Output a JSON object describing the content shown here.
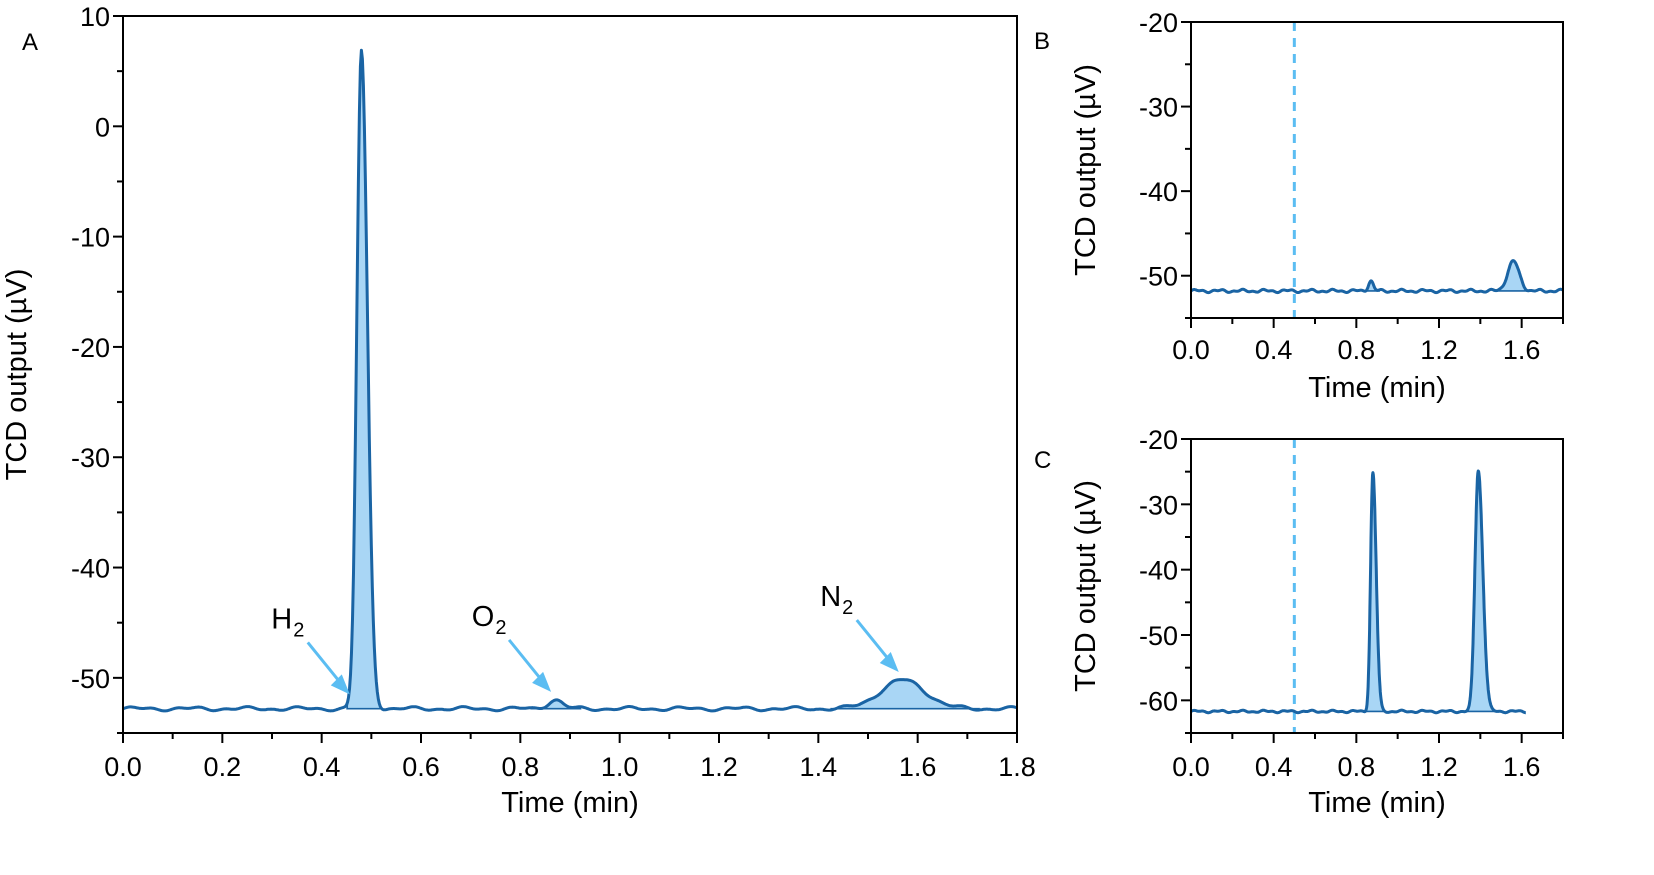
{
  "colors": {
    "line": "#1a64a4",
    "fill": "#a9d6f5",
    "arrow": "#5bbdf2",
    "marker": "#5bbdf2"
  },
  "chart_data": [
    {
      "panel": "A",
      "type": "line",
      "title": "",
      "xlabel": "Time (min)",
      "ylabel": "TCD output (µV)",
      "xlim": [
        0.0,
        1.8
      ],
      "ylim": [
        -55,
        10
      ],
      "xticks": [
        "0.0",
        "0.2",
        "0.4",
        "0.6",
        "0.8",
        "1.0",
        "1.2",
        "1.4",
        "1.6",
        "1.8"
      ],
      "yticks": [
        "10",
        "0",
        "-10",
        "-20",
        "-30",
        "-40",
        "-50"
      ],
      "grid": false,
      "baseline": -52.8,
      "peaks": [
        {
          "gas": "H",
          "sub": "2",
          "x": 0.48,
          "y": 6.8
        },
        {
          "gas": "O",
          "sub": "2",
          "x": 0.87,
          "y": -52.0
        },
        {
          "gas": "N",
          "sub": "2",
          "x": 1.57,
          "y": -50.2
        }
      ]
    },
    {
      "panel": "B",
      "type": "line",
      "title": "",
      "xlabel": "Time (min)",
      "ylabel": "TCD output (µV)",
      "xlim": [
        0.0,
        1.8
      ],
      "ylim": [
        -55,
        -20
      ],
      "xticks": [
        "0.0",
        "0.4",
        "0.8",
        "1.2",
        "1.6"
      ],
      "yticks": [
        "-20",
        "-30",
        "-40",
        "-50"
      ],
      "grid": false,
      "marker_x": 0.5,
      "baseline": -51.8,
      "peaks": [
        {
          "x": 0.87,
          "y": -50.6
        },
        {
          "x": 1.56,
          "y": -48.3
        }
      ]
    },
    {
      "panel": "C",
      "type": "line",
      "title": "",
      "xlabel": "Time (min)",
      "ylabel": "TCD output (µV)",
      "xlim": [
        0.0,
        1.8
      ],
      "ylim": [
        -65,
        -20
      ],
      "xticks": [
        "0.0",
        "0.4",
        "0.8",
        "1.2",
        "1.6"
      ],
      "yticks": [
        "-20",
        "-30",
        "-40",
        "-50",
        "-60"
      ],
      "grid": false,
      "marker_x": 0.5,
      "baseline": -61.7,
      "peaks": [
        {
          "x": 0.88,
          "y": -25.2
        },
        {
          "x": 1.39,
          "y": -24.8
        }
      ]
    }
  ]
}
